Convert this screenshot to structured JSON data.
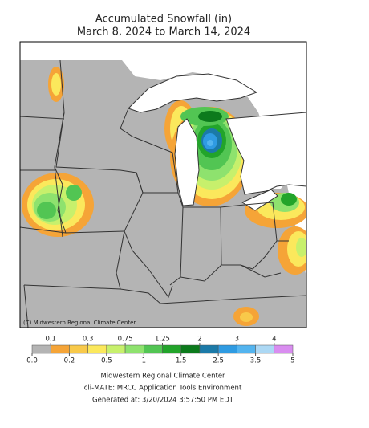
{
  "map": {
    "title": "Accumulated Snowfall (in)",
    "subtitle": "March 8, 2024 to March 14, 2024",
    "credit": "(C) Midwestern Regional Climate Center",
    "legend": {
      "bounds": [
        {
          "value": 0,
          "label": "0.0"
        },
        0.1,
        0.2,
        0.3,
        0.5,
        0.75,
        1,
        1.25,
        1.5,
        2,
        2.5,
        3,
        3.5,
        4,
        5
      ],
      "colors": [
        "#b4b4b4",
        "#f5a437",
        "#f8c94a",
        "#fbe85c",
        "#c7f06c",
        "#8ee26e",
        "#52c553",
        "#22a42a",
        "#0c7a1c",
        "#1b7aa8",
        "#2f9be2",
        "#53b4ef",
        "#acd8f4",
        "#d98df0"
      ]
    },
    "footer": [
      "Midwestern Regional Climate Center",
      "cli-MATE: MRCC Application Tools Environment",
      "Generated at: 3/20/2024 3:57:50 PM EDT"
    ]
  }
}
